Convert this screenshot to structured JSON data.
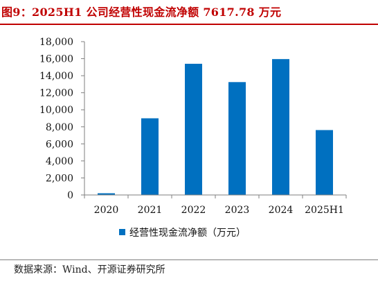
{
  "header": {
    "title": "图9：2025H1 公司经营性现金流净额 7617.78 万元"
  },
  "footer": {
    "source": "数据来源：Wind、开源证券研究所"
  },
  "colors": {
    "title": "#c00000",
    "bar": "#0070c0",
    "axis": "#7f7f7f"
  },
  "chart_data": {
    "type": "bar",
    "categories": [
      "2020",
      "2021",
      "2022",
      "2023",
      "2024",
      "2025H1"
    ],
    "series": [
      {
        "name": "经营性现金流净额（万元）",
        "values": [
          200,
          9000,
          15400,
          13250,
          15950,
          7617.78
        ]
      }
    ],
    "y_ticks": [
      "0",
      "2,000",
      "4,000",
      "6,000",
      "8,000",
      "10,000",
      "12,000",
      "14,000",
      "16,000",
      "18,000"
    ],
    "ylim": [
      0,
      18000
    ],
    "grid": false,
    "legend": "bottom-center"
  }
}
